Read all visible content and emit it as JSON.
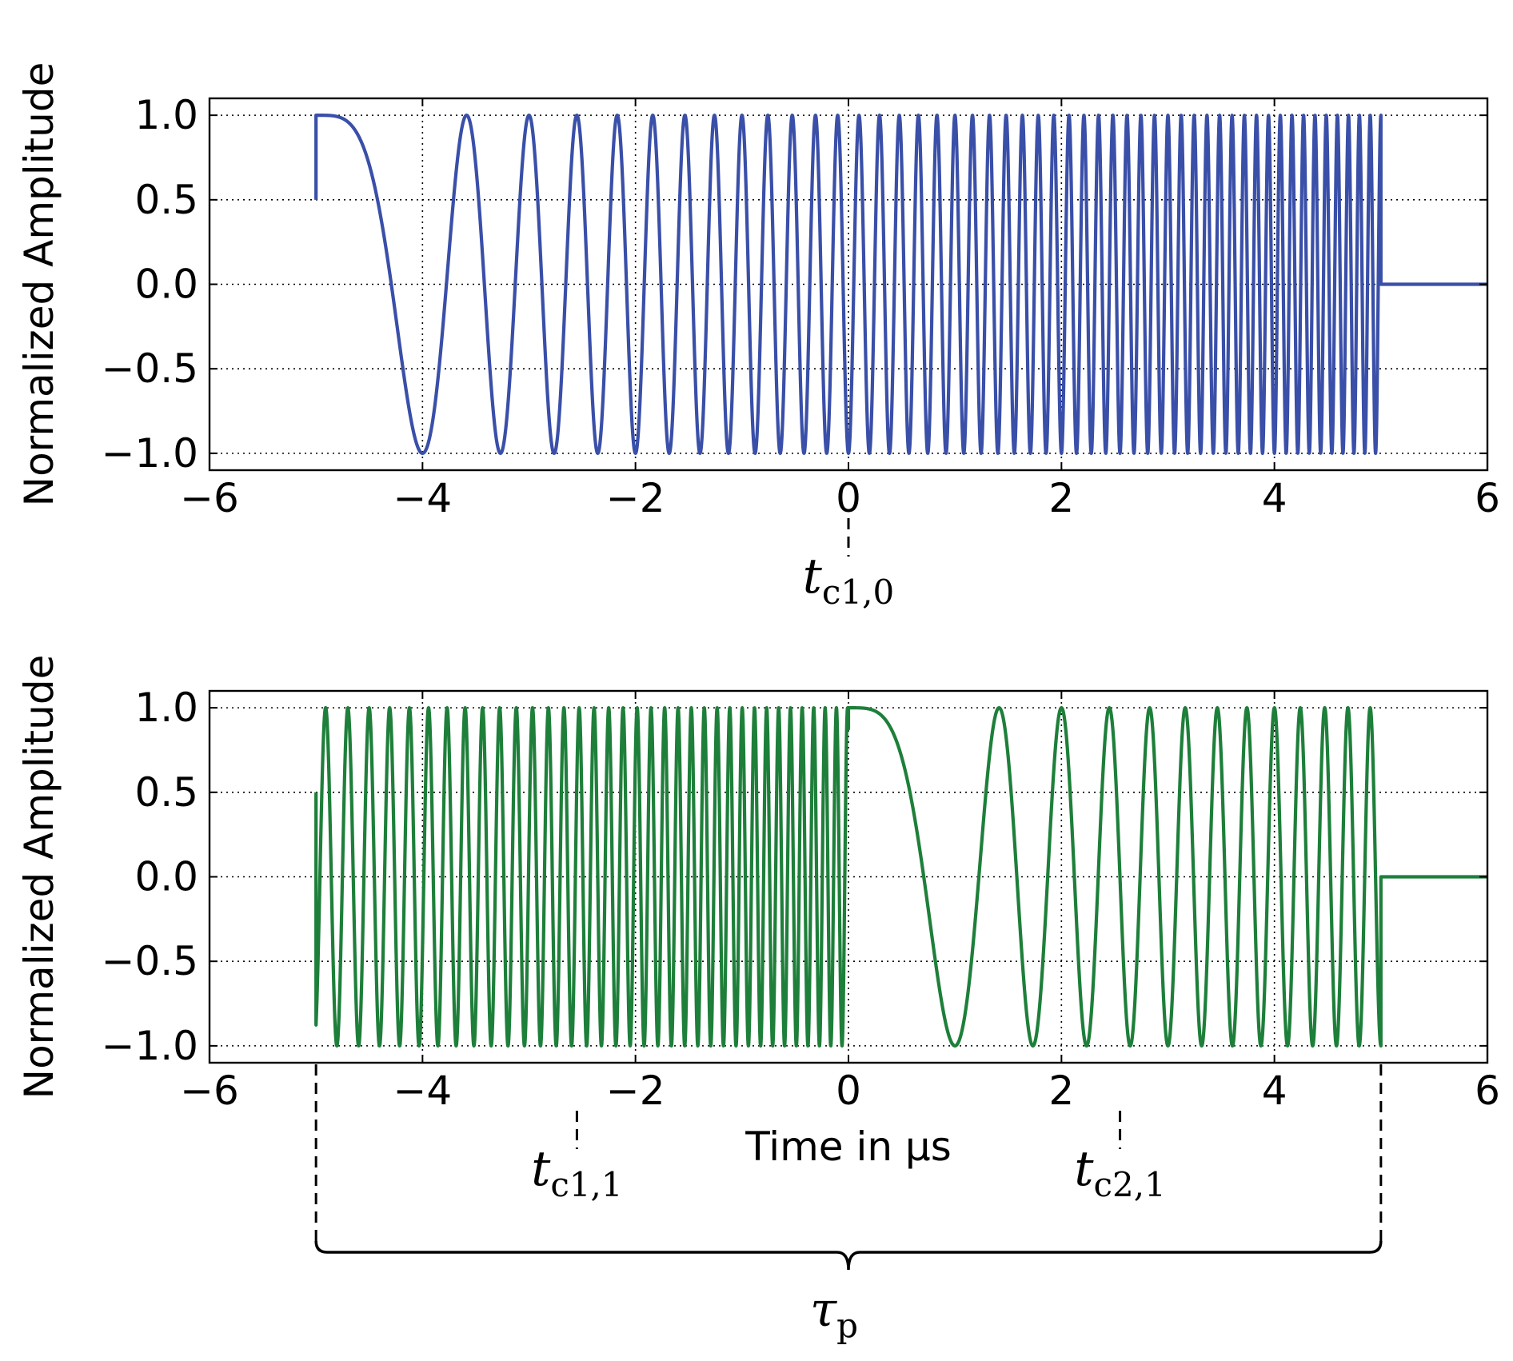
{
  "chart_data": [
    {
      "type": "line",
      "panel": "top",
      "ylabel": "Normalized Amplitude",
      "xlabel": "",
      "xlim": [
        -6,
        6
      ],
      "ylim": [
        -1.1,
        1.1
      ],
      "xticks": [
        -6,
        -4,
        -2,
        0,
        2,
        4,
        6
      ],
      "xtick_labels": [
        "−6",
        "−4",
        "−2",
        "0",
        "2",
        "4",
        "6"
      ],
      "yticks": [
        1.0,
        0.5,
        0.0,
        -0.5,
        -1.0
      ],
      "ytick_labels": [
        "1.0",
        "0.5",
        "0.0",
        "−0.5",
        "−1.0"
      ],
      "grid": true,
      "series": [
        {
          "color": "#3a4fa8",
          "signal": "linear-chirp (cosine)",
          "segments": [
            {
              "t_start": -5.0,
              "t_end": 5.0,
              "t_center": -5.0,
              "initial_value": 0.5
            }
          ],
          "zero_after": 5.0,
          "zero_until": 6.0
        }
      ],
      "annotations": [
        {
          "name": "t_c1_0",
          "x": 0,
          "base": "t",
          "sub": "c1,0"
        }
      ]
    },
    {
      "type": "line",
      "panel": "bottom",
      "ylabel": "Normalized Amplitude",
      "xlabel": "Time in μs",
      "xlim": [
        -6,
        6
      ],
      "ylim": [
        -1.1,
        1.1
      ],
      "xticks": [
        -6,
        -4,
        -2,
        0,
        2,
        4,
        6
      ],
      "xtick_labels": [
        "−6",
        "−4",
        "−2",
        "0",
        "2",
        "4",
        "6"
      ],
      "yticks": [
        1.0,
        0.5,
        0.0,
        -0.5,
        -1.0
      ],
      "ytick_labels": [
        "1.0",
        "0.5",
        "0.0",
        "−0.5",
        "−1.0"
      ],
      "grid": true,
      "series": [
        {
          "color": "#1e7f3a",
          "signal": "two-segment linear-chirp (cosine)",
          "segments": [
            {
              "t_start": -5.0,
              "t_end": 0.0,
              "t_center": -9.6,
              "initial_value": 0.5
            },
            {
              "t_start": 0.0,
              "t_end": 5.0,
              "t_center": 0.0,
              "initial_value": 1.0
            }
          ],
          "zero_after": 5.0,
          "zero_until": 6.0
        }
      ],
      "annotations": [
        {
          "name": "t_c1_1",
          "x": -2.55,
          "base": "t",
          "sub": "c1,1"
        },
        {
          "name": "t_c2_1",
          "x": 2.55,
          "base": "t",
          "sub": "c2,1"
        },
        {
          "name": "tau_p",
          "x_start": -5.0,
          "x_end": 5.0,
          "base": "τ",
          "sub": "p"
        }
      ]
    }
  ],
  "chirp_rate_per_us2": 3.14159
}
